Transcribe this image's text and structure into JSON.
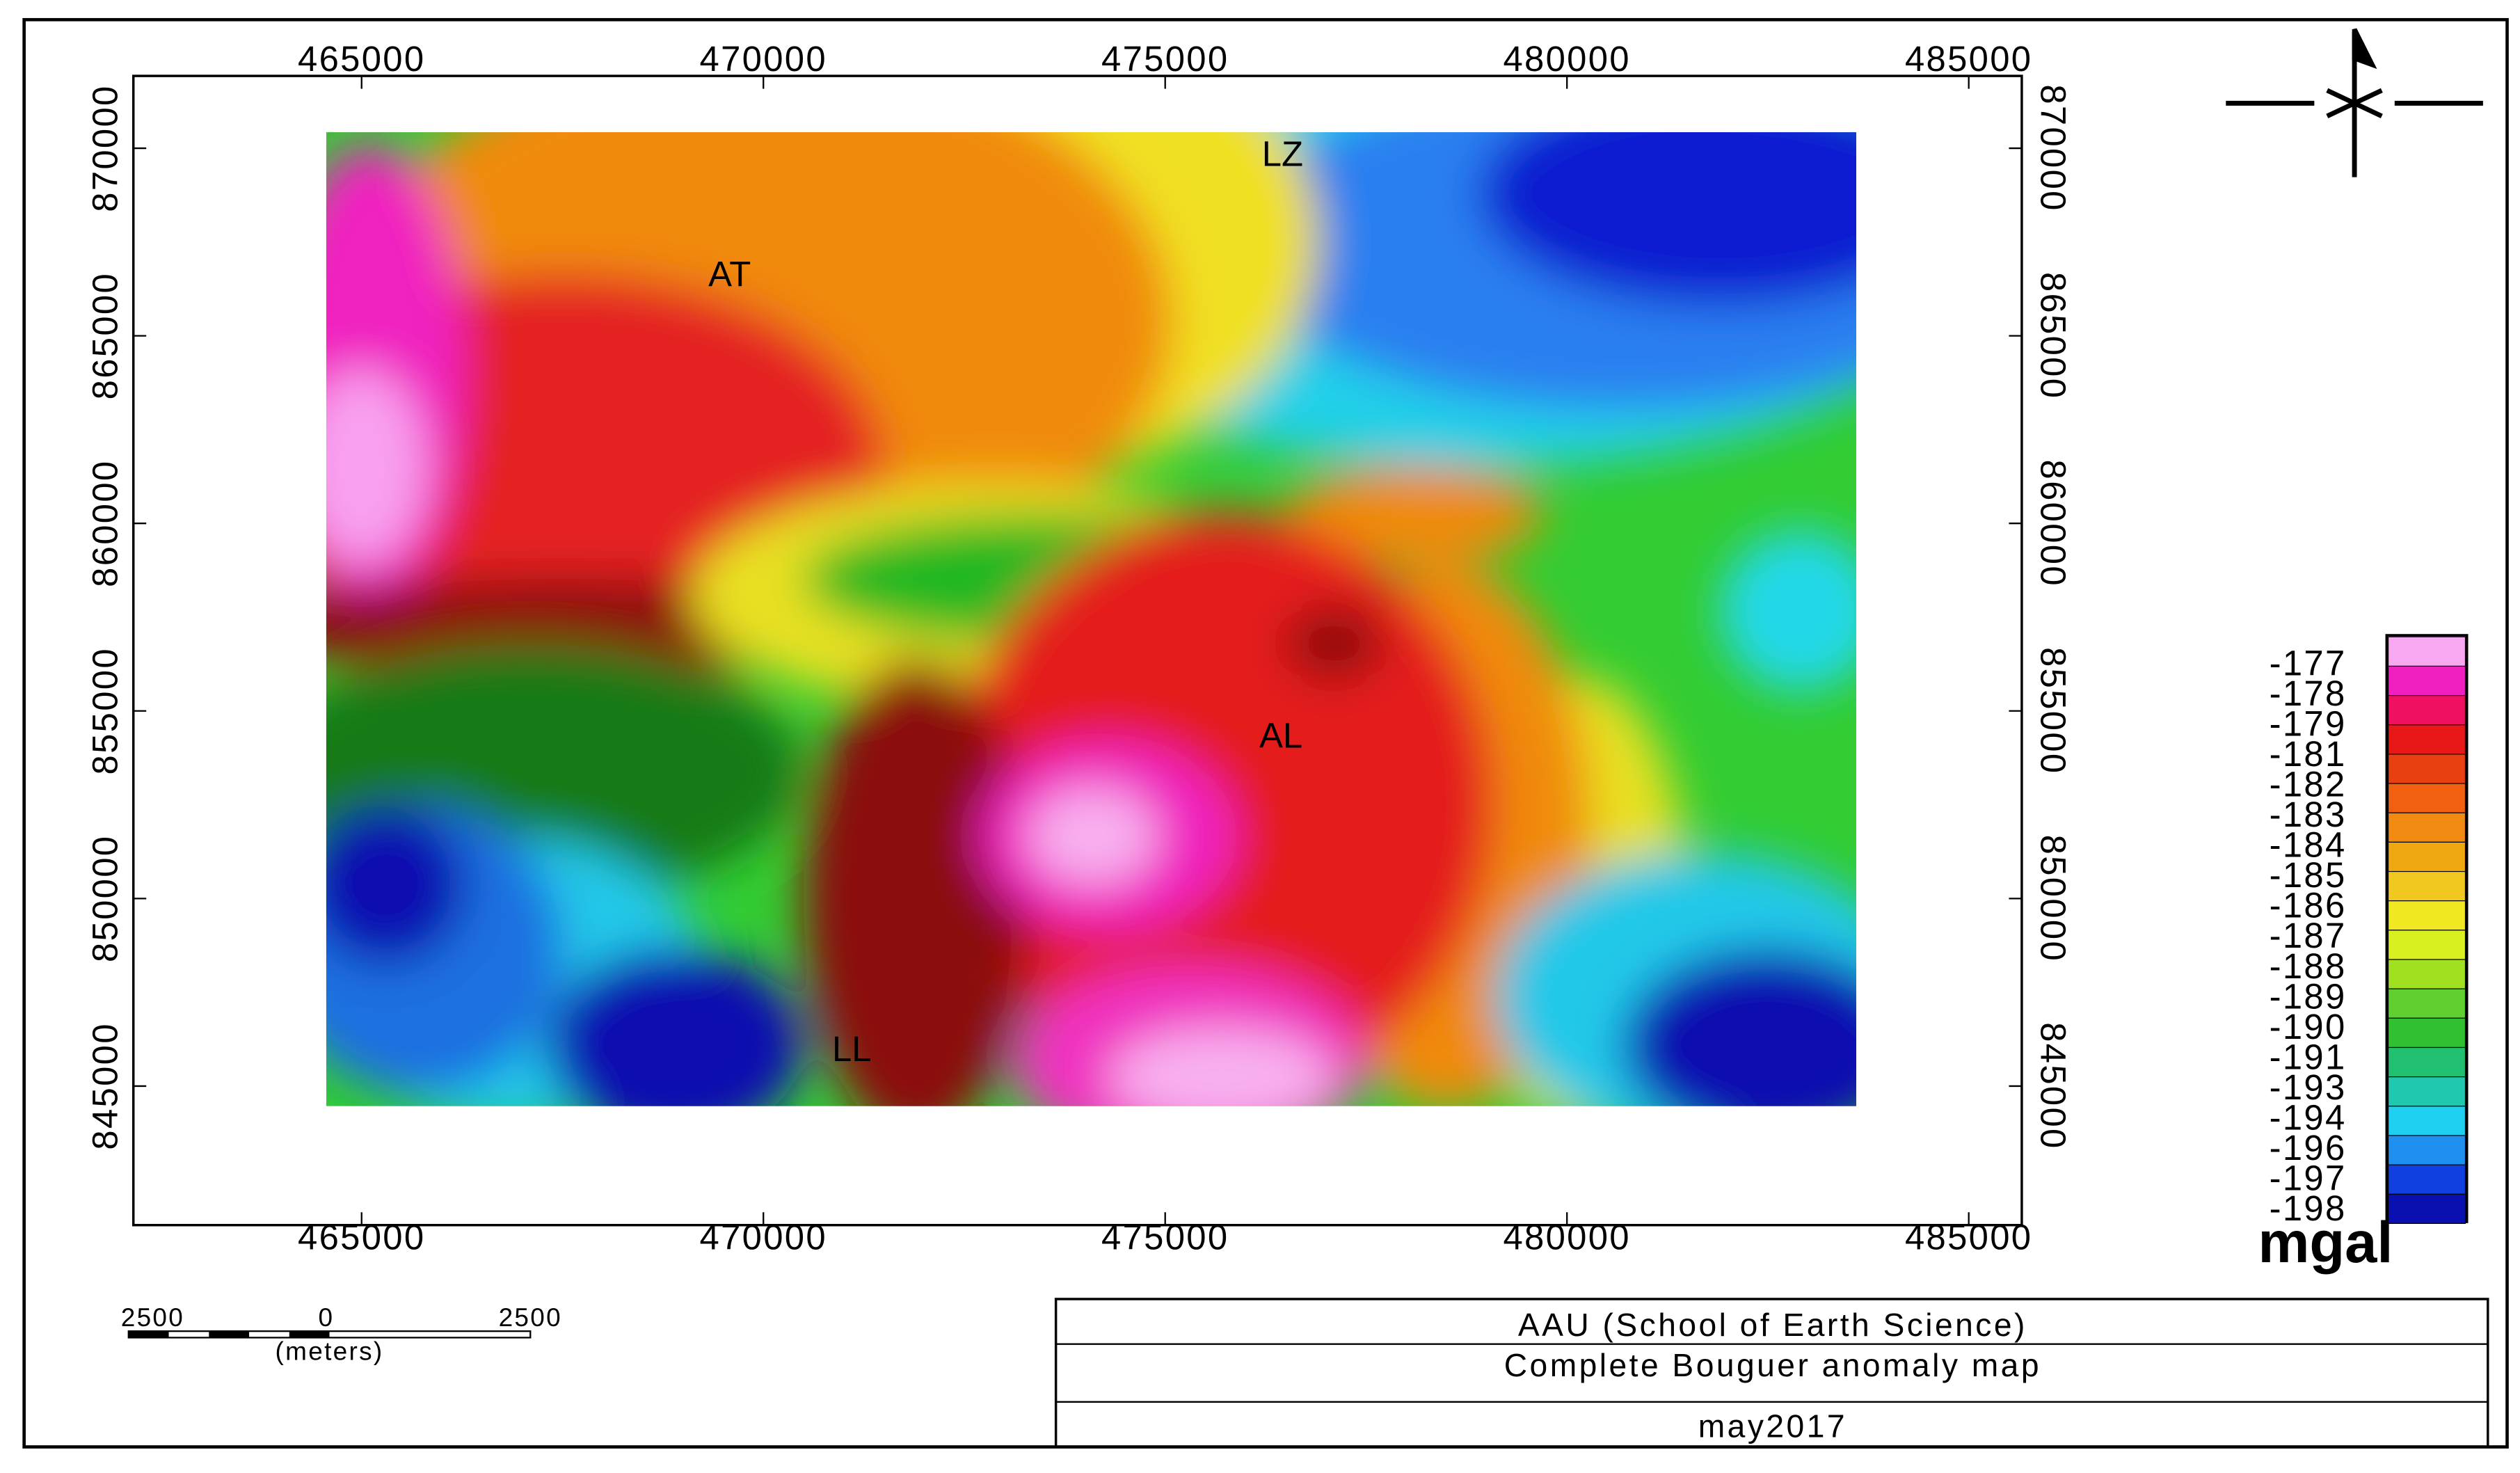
{
  "map": {
    "x_ticks": [
      465000,
      470000,
      475000,
      480000,
      485000
    ],
    "y_ticks": [
      870000,
      865000,
      860000,
      855000,
      850000,
      845000
    ],
    "labels": [
      "AT",
      "LZ",
      "AL",
      "LL"
    ]
  },
  "legend": {
    "values": [
      -177,
      -178,
      -179,
      -181,
      -182,
      -183,
      -184,
      -185,
      -186,
      -187,
      -188,
      -189,
      -190,
      -191,
      -193,
      -194,
      -196,
      -197,
      -198
    ],
    "colors": [
      "#f8a8f0",
      "#f020c0",
      "#f01060",
      "#e81818",
      "#e84010",
      "#f06010",
      "#f08a10",
      "#f0a810",
      "#f0c820",
      "#f0e820",
      "#d8f020",
      "#a0e020",
      "#60d030",
      "#30c030",
      "#20c070",
      "#20c8b0",
      "#20d0f0",
      "#2090f0",
      "#1040e0",
      "#0a10b0"
    ],
    "unit": "mgal"
  },
  "scale_bar": {
    "ticks": [
      2500,
      0,
      2500
    ],
    "unit": "(meters)"
  },
  "title_block": {
    "institution": "AAU (School of Earth Science)",
    "title": "Complete Bouguer anomaly map",
    "date": "may2017"
  }
}
